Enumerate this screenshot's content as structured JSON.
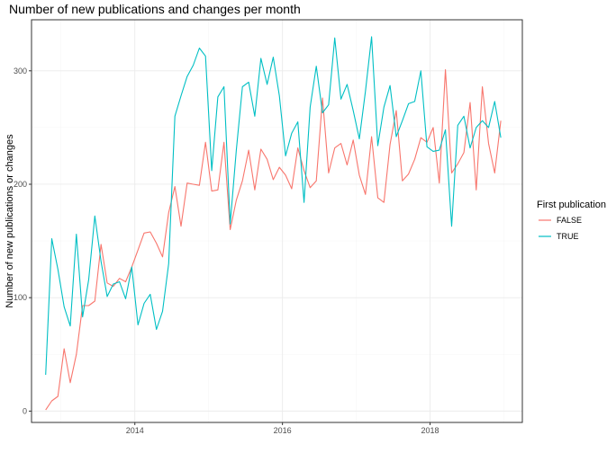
{
  "chart_data": {
    "type": "line",
    "title": "Number of new publications and changes per month",
    "xlabel": "",
    "ylabel": "Number of new publications or changes",
    "xlim": [
      2012.6,
      2019.25
    ],
    "ylim": [
      -10,
      345
    ],
    "x_ticks": [
      2014,
      2016,
      2018
    ],
    "x_tick_labels": [
      "2014",
      "2016",
      "2018"
    ],
    "y_ticks": [
      0,
      100,
      200,
      300
    ],
    "y_tick_labels": [
      "0",
      "100",
      "200",
      "300"
    ],
    "grid": true,
    "legend": {
      "title": "First publication",
      "position": "right"
    },
    "x": [
      2012.792,
      2012.875,
      2012.958,
      2013.042,
      2013.125,
      2013.208,
      2013.292,
      2013.375,
      2013.458,
      2013.542,
      2013.625,
      2013.708,
      2013.792,
      2013.875,
      2013.958,
      2014.042,
      2014.125,
      2014.208,
      2014.292,
      2014.375,
      2014.458,
      2014.542,
      2014.625,
      2014.708,
      2014.792,
      2014.875,
      2014.958,
      2015.042,
      2015.125,
      2015.208,
      2015.292,
      2015.375,
      2015.458,
      2015.542,
      2015.625,
      2015.708,
      2015.792,
      2015.875,
      2015.958,
      2016.042,
      2016.125,
      2016.208,
      2016.292,
      2016.375,
      2016.458,
      2016.542,
      2016.625,
      2016.708,
      2016.792,
      2016.875,
      2016.958,
      2017.042,
      2017.125,
      2017.208,
      2017.292,
      2017.375,
      2017.458,
      2017.542,
      2017.625,
      2017.708,
      2017.792,
      2017.875,
      2017.958,
      2018.042,
      2018.125,
      2018.208,
      2018.292,
      2018.375,
      2018.458,
      2018.542,
      2018.625,
      2018.708,
      2018.792,
      2018.875,
      2018.958
    ],
    "series": [
      {
        "name": "FALSE",
        "color": "#F8766D",
        "values": [
          1,
          9,
          13,
          55,
          25,
          50,
          93,
          93,
          97,
          147,
          113,
          110,
          117,
          114,
          127,
          142,
          157,
          158,
          148,
          136,
          175,
          198,
          163,
          201,
          200,
          199,
          237,
          194,
          195,
          237,
          160,
          186,
          203,
          230,
          195,
          231,
          222,
          204,
          215,
          208,
          196,
          232,
          212,
          197,
          203,
          276,
          210,
          232,
          236,
          217,
          239,
          208,
          191,
          242,
          188,
          184,
          235,
          265,
          203,
          209,
          222,
          241,
          237,
          250,
          201,
          301,
          210,
          218,
          228,
          272,
          195,
          286,
          236,
          210,
          256
        ]
      },
      {
        "name": "TRUE",
        "color": "#00BFC4",
        "values": [
          32,
          152,
          125,
          92,
          75,
          156,
          83,
          116,
          172,
          132,
          101,
          112,
          114,
          99,
          127,
          76,
          95,
          103,
          72,
          88,
          130,
          260,
          278,
          295,
          305,
          320,
          313,
          212,
          277,
          286,
          165,
          230,
          286,
          290,
          260,
          311,
          288,
          312,
          278,
          225,
          245,
          255,
          184,
          268,
          304,
          263,
          270,
          329,
          275,
          288,
          265,
          240,
          282,
          330,
          234,
          268,
          287,
          242,
          256,
          271,
          273,
          300,
          233,
          229,
          230,
          248,
          163,
          252,
          260,
          232,
          250,
          256,
          250,
          273,
          241
        ]
      }
    ]
  }
}
